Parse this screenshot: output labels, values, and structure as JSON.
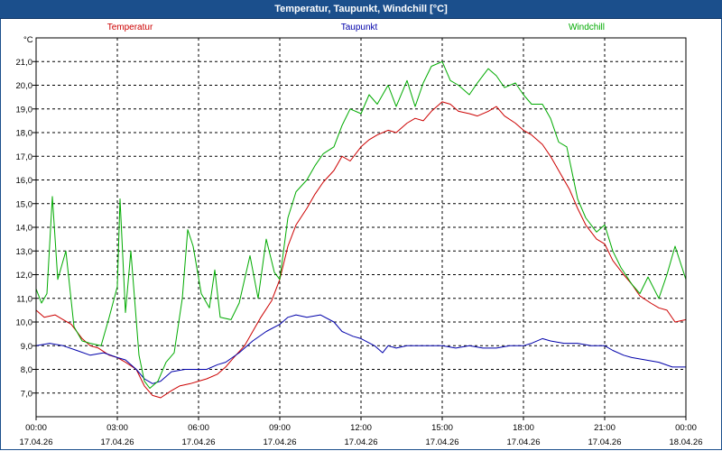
{
  "window": {
    "title": "Temperatur, Taupunkt, Windchill [°C]"
  },
  "chart_data": {
    "type": "line",
    "title": "Temperatur, Taupunkt, Windchill [°C]",
    "ylabel": "°C",
    "xlabel": "",
    "ylim": [
      6.0,
      22.0
    ],
    "xlim": [
      0,
      24
    ],
    "grid": true,
    "y_ticks": [
      7.0,
      8.0,
      9.0,
      10.0,
      11.0,
      12.0,
      13.0,
      14.0,
      15.0,
      16.0,
      17.0,
      18.0,
      19.0,
      20.0,
      21.0
    ],
    "y_tick_labels": [
      "7,0",
      "8,0",
      "9,0",
      "10,0",
      "11,0",
      "12,0",
      "13,0",
      "14,0",
      "15,0",
      "16,0",
      "17,0",
      "18,0",
      "19,0",
      "20,0",
      "21,0"
    ],
    "x_ticks": [
      0,
      3,
      6,
      9,
      12,
      15,
      18,
      21,
      24
    ],
    "x_tick_times": [
      "00:00",
      "03:00",
      "06:00",
      "09:00",
      "12:00",
      "15:00",
      "18:00",
      "21:00",
      "00:00"
    ],
    "x_tick_dates": [
      "17.04.26",
      "17.04.26",
      "17.04.26",
      "17.04.26",
      "17.04.26",
      "17.04.26",
      "17.04.26",
      "17.04.26",
      "18.04.26"
    ],
    "series": [
      {
        "name": "Temperatur",
        "color": "#cc0000",
        "points": [
          [
            0,
            10.5
          ],
          [
            0.3,
            10.2
          ],
          [
            0.7,
            10.3
          ],
          [
            1.0,
            10.1
          ],
          [
            1.3,
            9.9
          ],
          [
            1.7,
            9.3
          ],
          [
            2.0,
            9.0
          ],
          [
            2.3,
            8.9
          ],
          [
            2.7,
            8.6
          ],
          [
            3.0,
            8.5
          ],
          [
            3.3,
            8.3
          ],
          [
            3.7,
            8.0
          ],
          [
            4.0,
            7.3
          ],
          [
            4.3,
            6.9
          ],
          [
            4.6,
            6.8
          ],
          [
            5.0,
            7.1
          ],
          [
            5.3,
            7.3
          ],
          [
            5.7,
            7.4
          ],
          [
            6.0,
            7.5
          ],
          [
            6.3,
            7.6
          ],
          [
            6.7,
            7.8
          ],
          [
            7.0,
            8.1
          ],
          [
            7.3,
            8.5
          ],
          [
            7.7,
            9.0
          ],
          [
            8.0,
            9.6
          ],
          [
            8.3,
            10.2
          ],
          [
            8.7,
            10.9
          ],
          [
            9.0,
            11.8
          ],
          [
            9.3,
            13.2
          ],
          [
            9.6,
            14.1
          ],
          [
            10.0,
            14.8
          ],
          [
            10.3,
            15.4
          ],
          [
            10.6,
            15.9
          ],
          [
            11.0,
            16.4
          ],
          [
            11.3,
            17.0
          ],
          [
            11.6,
            16.8
          ],
          [
            12.0,
            17.4
          ],
          [
            12.3,
            17.7
          ],
          [
            12.6,
            17.9
          ],
          [
            13.0,
            18.1
          ],
          [
            13.3,
            18.0
          ],
          [
            13.7,
            18.4
          ],
          [
            14.0,
            18.6
          ],
          [
            14.3,
            18.5
          ],
          [
            14.6,
            18.9
          ],
          [
            15.0,
            19.3
          ],
          [
            15.3,
            19.2
          ],
          [
            15.6,
            18.9
          ],
          [
            16.0,
            18.8
          ],
          [
            16.3,
            18.7
          ],
          [
            16.7,
            18.9
          ],
          [
            17.0,
            19.1
          ],
          [
            17.3,
            18.7
          ],
          [
            17.7,
            18.4
          ],
          [
            18.0,
            18.1
          ],
          [
            18.3,
            17.9
          ],
          [
            18.7,
            17.5
          ],
          [
            19.0,
            17.0
          ],
          [
            19.3,
            16.4
          ],
          [
            19.7,
            15.6
          ],
          [
            20.0,
            14.8
          ],
          [
            20.3,
            14.1
          ],
          [
            20.7,
            13.5
          ],
          [
            21.0,
            13.3
          ],
          [
            21.3,
            12.6
          ],
          [
            21.7,
            12.0
          ],
          [
            22.0,
            11.6
          ],
          [
            22.3,
            11.1
          ],
          [
            22.7,
            10.8
          ],
          [
            23.0,
            10.6
          ],
          [
            23.3,
            10.5
          ],
          [
            23.6,
            10.0
          ],
          [
            24.0,
            10.1
          ]
        ]
      },
      {
        "name": "Taupunkt",
        "color": "#0000aa",
        "points": [
          [
            0,
            9.0
          ],
          [
            0.5,
            9.1
          ],
          [
            1.0,
            9.0
          ],
          [
            1.5,
            8.8
          ],
          [
            2.0,
            8.6
          ],
          [
            2.5,
            8.7
          ],
          [
            3.0,
            8.5
          ],
          [
            3.3,
            8.4
          ],
          [
            3.7,
            8.0
          ],
          [
            4.0,
            7.6
          ],
          [
            4.3,
            7.4
          ],
          [
            4.6,
            7.5
          ],
          [
            5.0,
            7.9
          ],
          [
            5.5,
            8.0
          ],
          [
            6.0,
            8.0
          ],
          [
            6.3,
            8.0
          ],
          [
            6.7,
            8.2
          ],
          [
            7.0,
            8.3
          ],
          [
            7.5,
            8.7
          ],
          [
            8.0,
            9.2
          ],
          [
            8.5,
            9.6
          ],
          [
            9.0,
            9.9
          ],
          [
            9.3,
            10.2
          ],
          [
            9.6,
            10.3
          ],
          [
            10.0,
            10.2
          ],
          [
            10.5,
            10.3
          ],
          [
            11.0,
            10.0
          ],
          [
            11.3,
            9.6
          ],
          [
            11.7,
            9.4
          ],
          [
            12.0,
            9.3
          ],
          [
            12.5,
            9.0
          ],
          [
            12.8,
            8.7
          ],
          [
            13.0,
            9.0
          ],
          [
            13.3,
            8.9
          ],
          [
            13.7,
            9.0
          ],
          [
            14.0,
            9.0
          ],
          [
            14.5,
            9.0
          ],
          [
            15.0,
            9.0
          ],
          [
            15.5,
            8.9
          ],
          [
            16.0,
            9.0
          ],
          [
            16.5,
            8.9
          ],
          [
            17.0,
            8.9
          ],
          [
            17.5,
            9.0
          ],
          [
            18.0,
            9.0
          ],
          [
            18.3,
            9.1
          ],
          [
            18.7,
            9.3
          ],
          [
            19.0,
            9.2
          ],
          [
            19.5,
            9.1
          ],
          [
            20.0,
            9.1
          ],
          [
            20.5,
            9.0
          ],
          [
            21.0,
            9.0
          ],
          [
            21.3,
            8.8
          ],
          [
            21.7,
            8.6
          ],
          [
            22.0,
            8.5
          ],
          [
            22.5,
            8.4
          ],
          [
            23.0,
            8.3
          ],
          [
            23.5,
            8.1
          ],
          [
            24.0,
            8.1
          ]
        ]
      },
      {
        "name": "Windchill",
        "color": "#00aa00",
        "points": [
          [
            0,
            11.4
          ],
          [
            0.2,
            10.8
          ],
          [
            0.4,
            11.2
          ],
          [
            0.6,
            15.3
          ],
          [
            0.8,
            11.8
          ],
          [
            1.1,
            13.0
          ],
          [
            1.4,
            9.8
          ],
          [
            1.7,
            9.2
          ],
          [
            2.0,
            9.1
          ],
          [
            2.4,
            9.0
          ],
          [
            2.7,
            10.2
          ],
          [
            3.0,
            11.5
          ],
          [
            3.1,
            15.2
          ],
          [
            3.3,
            10.4
          ],
          [
            3.5,
            13.0
          ],
          [
            3.8,
            8.6
          ],
          [
            4.0,
            7.5
          ],
          [
            4.2,
            7.2
          ],
          [
            4.5,
            7.5
          ],
          [
            4.8,
            8.3
          ],
          [
            5.1,
            8.7
          ],
          [
            5.4,
            11.0
          ],
          [
            5.6,
            13.9
          ],
          [
            5.8,
            13.2
          ],
          [
            6.1,
            11.2
          ],
          [
            6.4,
            10.6
          ],
          [
            6.6,
            12.2
          ],
          [
            6.8,
            10.2
          ],
          [
            7.2,
            10.1
          ],
          [
            7.5,
            10.8
          ],
          [
            7.9,
            12.8
          ],
          [
            8.2,
            11.0
          ],
          [
            8.5,
            13.5
          ],
          [
            8.8,
            12.1
          ],
          [
            9.0,
            11.8
          ],
          [
            9.3,
            14.4
          ],
          [
            9.6,
            15.5
          ],
          [
            10.0,
            16.0
          ],
          [
            10.3,
            16.6
          ],
          [
            10.6,
            17.1
          ],
          [
            11.0,
            17.4
          ],
          [
            11.3,
            18.3
          ],
          [
            11.6,
            19.0
          ],
          [
            12.0,
            18.8
          ],
          [
            12.3,
            19.6
          ],
          [
            12.6,
            19.2
          ],
          [
            13.0,
            20.0
          ],
          [
            13.3,
            19.1
          ],
          [
            13.7,
            20.2
          ],
          [
            14.0,
            19.1
          ],
          [
            14.3,
            20.1
          ],
          [
            14.6,
            20.8
          ],
          [
            15.0,
            21.0
          ],
          [
            15.3,
            20.2
          ],
          [
            15.6,
            20.0
          ],
          [
            16.0,
            19.6
          ],
          [
            16.3,
            20.1
          ],
          [
            16.7,
            20.7
          ],
          [
            17.0,
            20.4
          ],
          [
            17.3,
            19.9
          ],
          [
            17.7,
            20.1
          ],
          [
            18.0,
            19.6
          ],
          [
            18.3,
            19.2
          ],
          [
            18.7,
            19.2
          ],
          [
            19.0,
            18.6
          ],
          [
            19.3,
            17.6
          ],
          [
            19.6,
            17.4
          ],
          [
            20.0,
            15.2
          ],
          [
            20.3,
            14.4
          ],
          [
            20.7,
            13.8
          ],
          [
            21.0,
            14.1
          ],
          [
            21.3,
            13.0
          ],
          [
            21.6,
            12.3
          ],
          [
            22.0,
            11.6
          ],
          [
            22.3,
            11.2
          ],
          [
            22.6,
            11.9
          ],
          [
            23.0,
            11.0
          ],
          [
            23.3,
            12.0
          ],
          [
            23.6,
            13.2
          ],
          [
            24.0,
            11.8
          ]
        ]
      }
    ]
  }
}
